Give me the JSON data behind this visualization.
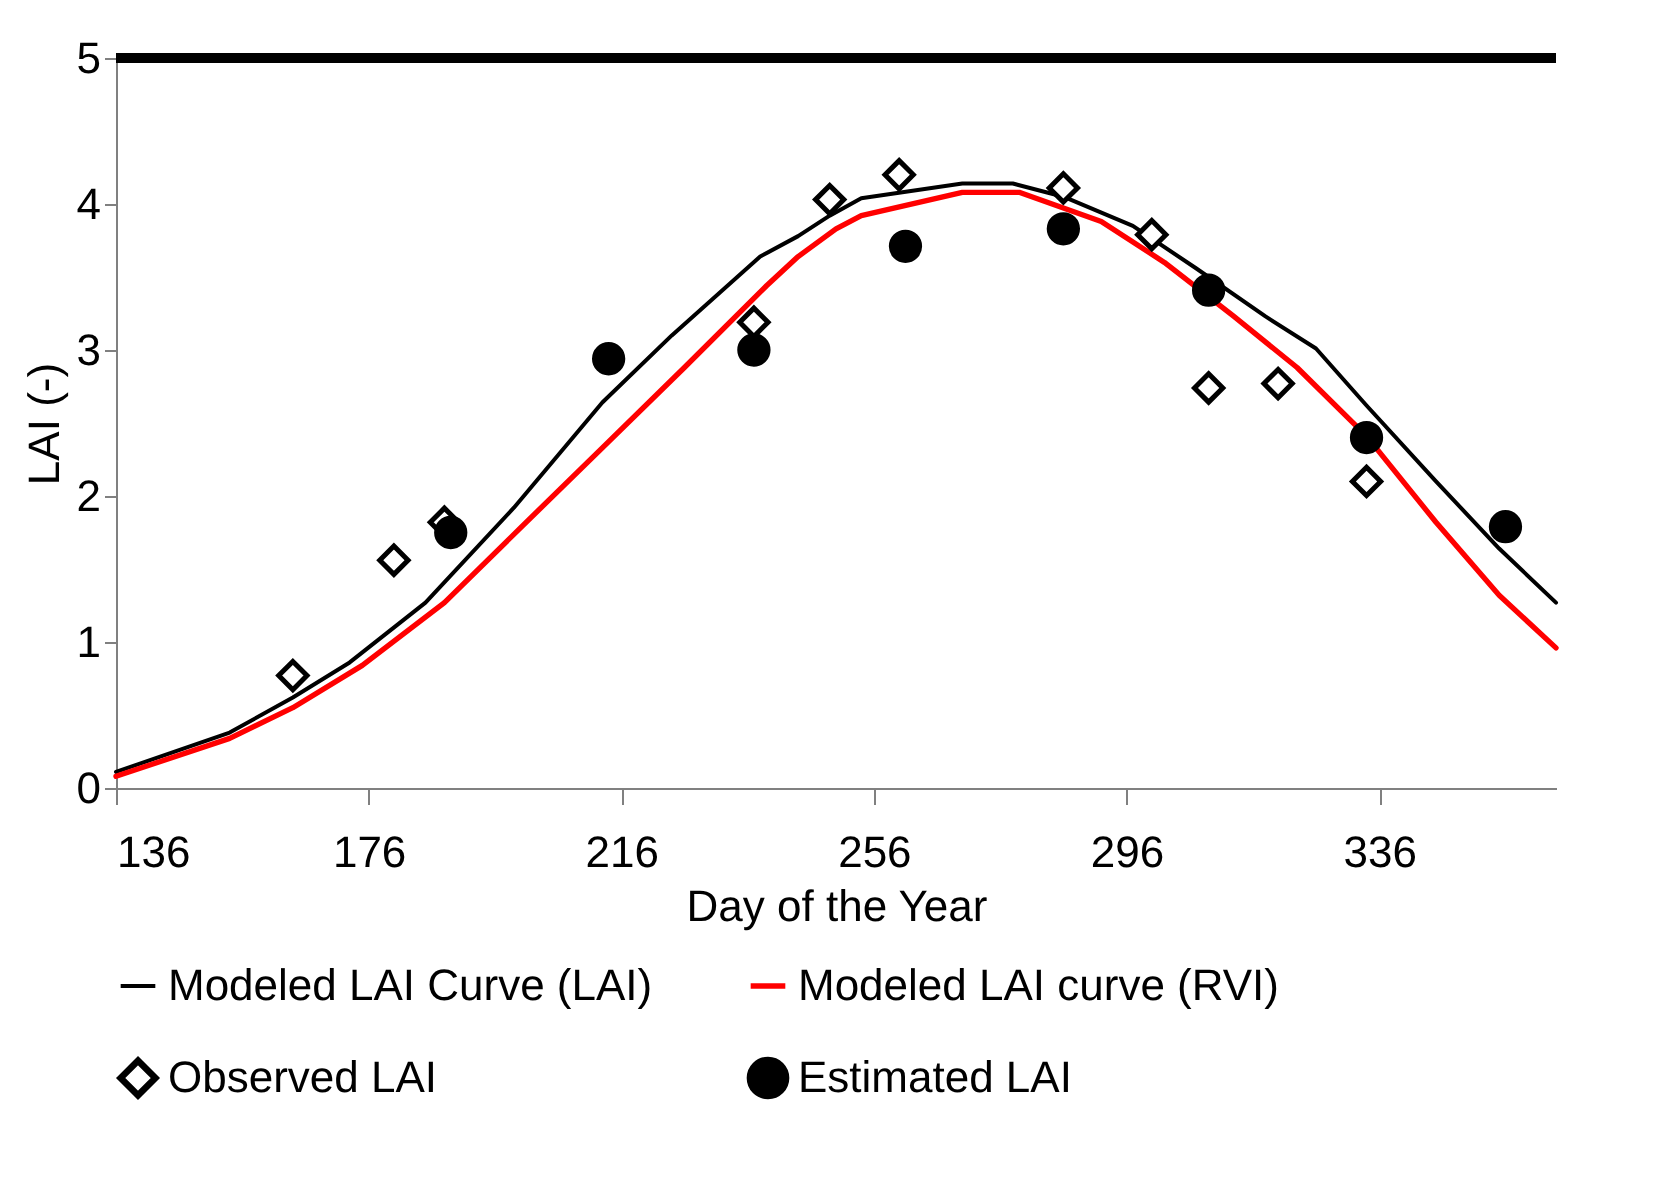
{
  "chart_data": {
    "type": "line",
    "xlabel": "Day of the Year",
    "ylabel": "LAI (-)",
    "xlim": [
      136,
      364
    ],
    "xticks": [
      136,
      176,
      216,
      256,
      296,
      336
    ],
    "ylim": [
      0,
      5
    ],
    "yticks": [
      {
        "value": 0,
        "label": "0"
      },
      {
        "value": 1,
        "label": "1"
      },
      {
        "value": 2,
        "label": "2"
      },
      {
        "value": 3,
        "label": "3"
      },
      {
        "value": 4,
        "label": "4"
      },
      {
        "value": 5,
        "label": "5"
      }
    ],
    "grid": false,
    "legend": "bottom",
    "series": [
      {
        "name": "Modeled LAI Curve (LAI)",
        "color": "#000000",
        "line_style": "solid",
        "marker": "none",
        "x": [
          136,
          154,
          164,
          173,
          185,
          199,
          213,
          224,
          238,
          244,
          249,
          254,
          270,
          278,
          286,
          297,
          307,
          318,
          326,
          334,
          345,
          355,
          364
        ],
        "values": [
          0.11,
          0.38,
          0.62,
          0.86,
          1.27,
          1.92,
          2.64,
          3.1,
          3.64,
          3.78,
          3.92,
          4.04,
          4.14,
          4.14,
          4.05,
          3.85,
          3.56,
          3.23,
          3.01,
          2.62,
          2.1,
          1.64,
          1.27
        ]
      },
      {
        "name": "Modeled LAI curve (RVI)",
        "color": "#ff0000",
        "line_style": "solid",
        "marker": "none",
        "x": [
          136,
          154,
          164,
          175,
          188,
          200,
          213,
          226,
          239,
          244,
          250,
          254,
          270,
          279,
          292,
          302,
          313,
          323,
          334,
          345,
          355,
          364
        ],
        "values": [
          0.08,
          0.34,
          0.55,
          0.84,
          1.27,
          1.78,
          2.33,
          2.88,
          3.44,
          3.64,
          3.83,
          3.92,
          4.08,
          4.08,
          3.88,
          3.6,
          3.23,
          2.88,
          2.41,
          1.82,
          1.32,
          0.96
        ]
      },
      {
        "name": "Observed LAI",
        "type": "scatter",
        "color": "#000000",
        "marker": "diamond",
        "x": [
          164,
          180,
          188,
          237,
          249,
          260,
          286,
          300,
          309,
          320,
          334
        ],
        "values": [
          0.77,
          1.56,
          1.82,
          3.19,
          4.03,
          4.2,
          4.11,
          3.79,
          2.74,
          2.77,
          2.1
        ]
      },
      {
        "name": "Estimated LAI",
        "type": "scatter",
        "color": "#000000",
        "marker": "circle",
        "x": [
          189,
          214,
          237,
          261,
          286,
          309,
          334,
          356
        ],
        "values": [
          1.75,
          2.94,
          3.0,
          3.71,
          3.83,
          3.41,
          2.4,
          1.79
        ]
      }
    ]
  }
}
